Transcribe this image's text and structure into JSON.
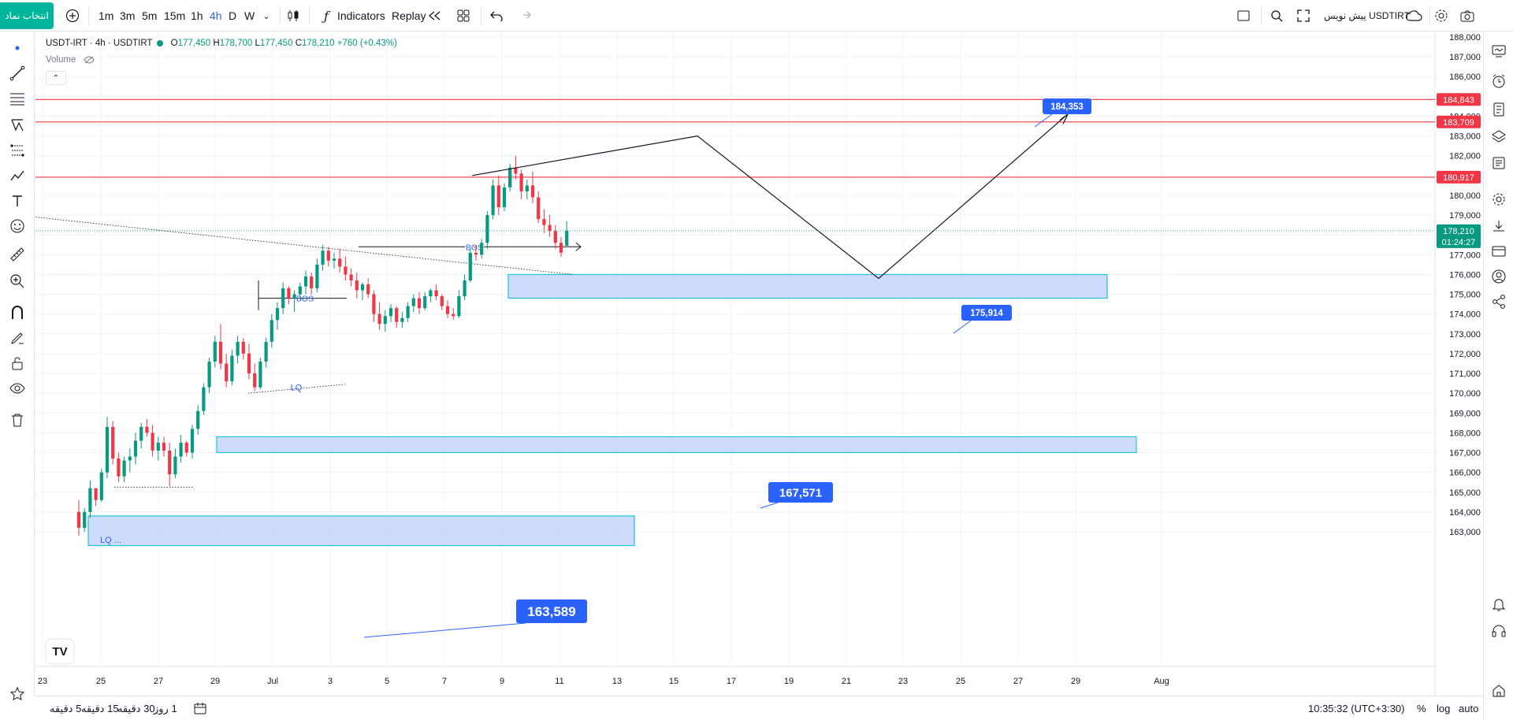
{
  "toolbar": {
    "symbol_button": "انتخاب نماد",
    "intervals": [
      "1m",
      "3m",
      "5m",
      "15m",
      "1h",
      "4h",
      "D",
      "W"
    ],
    "active_interval": "4h",
    "indicators_label": "Indicators",
    "replay_label": "Replay",
    "symbol_name": "USDTIRT",
    "symbol_suffix": "پیش نویس",
    "fx_icon": "function-icon"
  },
  "legend": {
    "title": "USDT-IRT · 4h · USDTIRT",
    "open_label": "O",
    "open": "177,450",
    "high_label": "H",
    "high": "178,700",
    "low_label": "L",
    "low": "177,450",
    "close_label": "C",
    "close": "178,210",
    "change": "+760 (+0.43%)",
    "volume_label": "Volume"
  },
  "price_axis": {
    "ticks": [
      "188,000",
      "187,000",
      "186,000",
      "185,000",
      "184,000",
      "183,000",
      "182,000",
      "181,000",
      "180,000",
      "179,000",
      "178,000",
      "177,000",
      "176,000",
      "175,000",
      "174,000",
      "173,000",
      "172,000",
      "171,000",
      "170,000",
      "169,000",
      "168,000",
      "167,000",
      "166,000",
      "165,000",
      "164,000",
      "163,000"
    ],
    "tick_values": [
      188000,
      187000,
      186000,
      185000,
      184000,
      183000,
      182000,
      181000,
      180000,
      179000,
      178000,
      177000,
      176000,
      175000,
      174000,
      173000,
      172000,
      171000,
      170000,
      169000,
      168000,
      167000,
      166000,
      165000,
      164000,
      163000
    ],
    "level_labels": [
      {
        "text": "184,843",
        "value": 184843,
        "color": "#f23645"
      },
      {
        "text": "183,709",
        "value": 183709,
        "color": "#f23645"
      },
      {
        "text": "180,917",
        "value": 180917,
        "color": "#f23645"
      }
    ],
    "last_price": "178,210",
    "last_price_value": 178210,
    "countdown": "01:24:27"
  },
  "time_axis": {
    "ticks": [
      "23",
      "25",
      "27",
      "29",
      "Jul",
      "3",
      "5",
      "7",
      "9",
      "11",
      "13",
      "15",
      "17",
      "19",
      "21",
      "23",
      "25",
      "27",
      "29",
      "Aug"
    ]
  },
  "annotations": {
    "bos_1": "BOS",
    "bos_2": "BOS",
    "lq_1": "LQ",
    "lq_2": "LQ",
    "lq_2_suffix": "...",
    "label_184353": "184,353",
    "label_175914": "175,914",
    "label_167571": "167,571",
    "label_163589": "163,589"
  },
  "bottom": {
    "ranges": [
      "5 دقیقه",
      "15 دقیقه",
      "30 دقیقه",
      "1 روز"
    ],
    "clock": "10:35:32 (UTC+3:30)",
    "percent": "%",
    "log": "log",
    "auto": "auto"
  },
  "colors": {
    "up": "#089981",
    "down": "#f23645",
    "zone_fill": "#c6d5fd",
    "zone_border": "#22c4d8",
    "label_blue": "#2962ff",
    "level_red": "#f23645",
    "symbol_button": "#00b49c"
  },
  "chart_data": {
    "type": "candlestick",
    "timeframe": "4h",
    "candles": [
      [
        164000,
        164600,
        162800,
        163200
      ],
      [
        163200,
        164200,
        163000,
        164000
      ],
      [
        164000,
        165600,
        163700,
        165200
      ],
      [
        165200,
        165000,
        164300,
        164600
      ],
      [
        164600,
        166200,
        164500,
        166000
      ],
      [
        166000,
        168800,
        165700,
        168300
      ],
      [
        168300,
        168600,
        166400,
        166700
      ],
      [
        166700,
        167000,
        165500,
        165800
      ],
      [
        165800,
        166800,
        165500,
        166600
      ],
      [
        166600,
        167200,
        166000,
        166800
      ],
      [
        166800,
        168000,
        166400,
        167600
      ],
      [
        167600,
        168500,
        167200,
        168300
      ],
      [
        168300,
        168700,
        167800,
        168000
      ],
      [
        168000,
        168400,
        166800,
        167100
      ],
      [
        167100,
        167800,
        166600,
        167500
      ],
      [
        167500,
        167800,
        166800,
        167100
      ],
      [
        167100,
        167500,
        165300,
        165900
      ],
      [
        165900,
        167200,
        165700,
        166800
      ],
      [
        166800,
        167900,
        166500,
        167500
      ],
      [
        167500,
        167600,
        166800,
        167000
      ],
      [
        167000,
        168400,
        166700,
        168200
      ],
      [
        168200,
        169400,
        167900,
        169100
      ],
      [
        169100,
        170500,
        168900,
        170300
      ],
      [
        170300,
        171800,
        170000,
        171600
      ],
      [
        171600,
        172900,
        171300,
        172600
      ],
      [
        172600,
        173500,
        171200,
        171500
      ],
      [
        171500,
        172000,
        170300,
        170600
      ],
      [
        170600,
        172200,
        170400,
        171900
      ],
      [
        171900,
        172900,
        171500,
        172600
      ],
      [
        172600,
        172800,
        171700,
        172000
      ],
      [
        172000,
        172500,
        170700,
        171000
      ],
      [
        171000,
        171500,
        170100,
        170300
      ],
      [
        170300,
        171800,
        170200,
        171600
      ],
      [
        171600,
        172800,
        171300,
        172600
      ],
      [
        172600,
        174000,
        172300,
        173700
      ],
      [
        173700,
        174600,
        173200,
        174300
      ],
      [
        174300,
        175600,
        174000,
        175300
      ],
      [
        175300,
        175400,
        174500,
        174800
      ],
      [
        174800,
        175200,
        174100,
        175000
      ],
      [
        175000,
        175600,
        174800,
        175400
      ],
      [
        175400,
        176200,
        175000,
        175900
      ],
      [
        175900,
        176100,
        175000,
        175300
      ],
      [
        175300,
        176800,
        175100,
        176500
      ],
      [
        176500,
        177500,
        176200,
        177200
      ],
      [
        177200,
        177400,
        176400,
        176700
      ],
      [
        176700,
        177100,
        176300,
        176800
      ],
      [
        176800,
        177300,
        176100,
        176400
      ],
      [
        176400,
        176900,
        175700,
        176000
      ],
      [
        176000,
        176300,
        175400,
        175700
      ],
      [
        175700,
        176100,
        174800,
        175200
      ],
      [
        175200,
        175600,
        174700,
        175500
      ],
      [
        175500,
        175800,
        174800,
        175000
      ],
      [
        175000,
        175200,
        173600,
        174000
      ],
      [
        174000,
        174600,
        173200,
        173500
      ],
      [
        173500,
        174200,
        173100,
        173900
      ],
      [
        173900,
        174500,
        173600,
        174300
      ],
      [
        174300,
        174400,
        173300,
        173600
      ],
      [
        173600,
        174100,
        173300,
        173800
      ],
      [
        173800,
        174600,
        173600,
        174400
      ],
      [
        174400,
        175000,
        174100,
        174800
      ],
      [
        174800,
        175100,
        174000,
        174300
      ],
      [
        174300,
        175100,
        174200,
        174900
      ],
      [
        174900,
        175300,
        174600,
        175200
      ],
      [
        175200,
        175500,
        174700,
        174900
      ],
      [
        174900,
        175000,
        174200,
        174400
      ],
      [
        174400,
        174700,
        173800,
        174000
      ],
      [
        174000,
        174300,
        173700,
        173900
      ],
      [
        173900,
        175200,
        173800,
        174900
      ],
      [
        174900,
        176000,
        174700,
        175700
      ],
      [
        175700,
        177300,
        175600,
        177100
      ],
      [
        177100,
        177500,
        176700,
        177000
      ],
      [
        177000,
        177800,
        176800,
        177600
      ],
      [
        177600,
        179200,
        177300,
        179000
      ],
      [
        179000,
        180800,
        178800,
        180500
      ],
      [
        180500,
        181000,
        179000,
        179400
      ],
      [
        179400,
        180600,
        179200,
        180400
      ],
      [
        180400,
        181600,
        180200,
        181400
      ],
      [
        181400,
        182000,
        180800,
        181100
      ],
      [
        181100,
        181300,
        179800,
        180200
      ],
      [
        180200,
        180800,
        179800,
        180500
      ],
      [
        180500,
        181200,
        179600,
        179900
      ],
      [
        179900,
        180200,
        178600,
        178800
      ],
      [
        178800,
        179300,
        178100,
        178500
      ],
      [
        178500,
        179000,
        177900,
        178200
      ],
      [
        178200,
        178500,
        177300,
        177600
      ],
      [
        177600,
        177900,
        176900,
        177100
      ],
      [
        177450,
        178700,
        177450,
        178210
      ]
    ],
    "horizontal_levels": [
      184843,
      183709,
      180917
    ],
    "demand_zones": [
      {
        "label": "175,914",
        "top": 176000,
        "bottom": 174800
      },
      {
        "label": "167,571",
        "top": 167800,
        "bottom": 167000
      },
      {
        "label": "163,589",
        "top": 163800,
        "bottom": 162300
      }
    ],
    "projection_path": [
      [
        181000,
        "top"
      ],
      [
        175800,
        "bottom"
      ],
      [
        184100,
        "target"
      ]
    ],
    "y_range": [
      162000,
      188400
    ]
  }
}
